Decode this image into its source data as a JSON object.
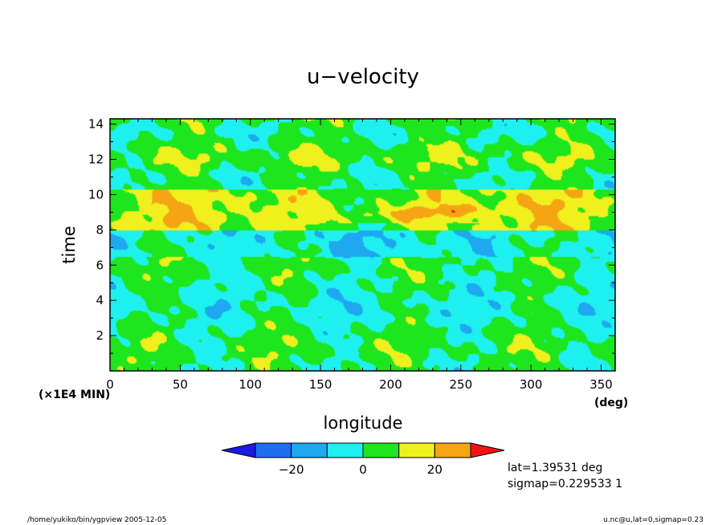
{
  "chart_data": {
    "type": "heatmap",
    "title": "u−velocity",
    "xlabel": "longitude",
    "ylabel": "time",
    "x_unit": "(deg)",
    "y_unit": "(×1E4 MIN)",
    "xlim": [
      0,
      360
    ],
    "ylim": [
      0,
      14.3
    ],
    "x_ticks": [
      0,
      50,
      100,
      150,
      200,
      250,
      300,
      350
    ],
    "x_tick_labels": [
      "0",
      "50",
      "100",
      "150",
      "200",
      "250",
      "300",
      "350"
    ],
    "y_ticks": [
      2,
      4,
      6,
      8,
      10,
      12,
      14
    ],
    "y_tick_labels": [
      "2",
      "4",
      "6",
      "8",
      "10",
      "12",
      "14"
    ],
    "colorbar": {
      "levels": [
        -30,
        -20,
        -10,
        0,
        10,
        20,
        30
      ],
      "tick_values": [
        -20,
        0,
        20
      ],
      "tick_labels": [
        "−20",
        "0",
        "20"
      ],
      "colors": [
        "#1a1ae6",
        "#1e6ef0",
        "#1ea8f0",
        "#1ef0f0",
        "#1ee61e",
        "#f0f01e",
        "#f5a514",
        "#f01414"
      ]
    },
    "annotations": [
      "lat=1.39531 deg",
      "sigmap=0.229533 1"
    ]
  },
  "footer": {
    "left": "/home/yukiko/bin/ygpview  2005-12-05",
    "right": "u.nc@u,lat=0,sigmap=0.23"
  }
}
